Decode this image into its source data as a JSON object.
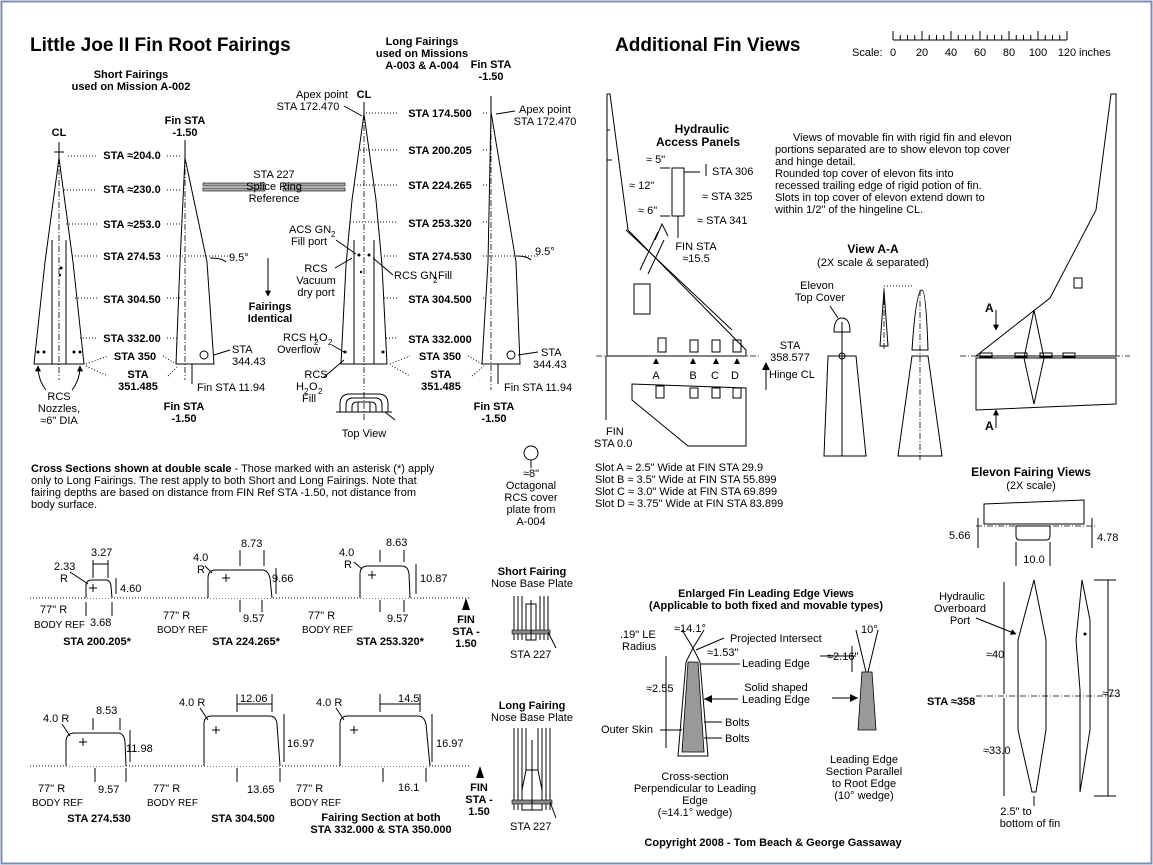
{
  "left": {
    "title": "Little Joe II Fin Root Fairings",
    "short_head": [
      "Short Fairings",
      "used on Mission A-002"
    ],
    "long_head": [
      "Long Fairings",
      "used on Missions",
      "A-003 & A-004"
    ],
    "cl": "CL",
    "fin_sta_top_l": [
      "Fin STA",
      "-1.50"
    ],
    "fin_sta_top_r": [
      "Fin STA",
      "-1.50"
    ],
    "apex_l": [
      "Apex point",
      "STA 172.470"
    ],
    "apex_r": [
      "Apex point",
      "STA 172.470"
    ],
    "short_stations": [
      "STA ≈204.0",
      "STA ≈230.0",
      "STA ≈253.0",
      "STA 274.53",
      "STA 304.50",
      "STA 332.00",
      "STA 350"
    ],
    "long_stations": [
      "STA 174.500",
      "STA 200.205",
      "STA 224.265",
      "STA 253.320",
      "STA 274.530",
      "STA 304.500",
      "STA 332.000",
      "STA 350"
    ],
    "sta_351_l": [
      "STA",
      "351.485"
    ],
    "sta_351_r": [
      "STA",
      "351.485"
    ],
    "splice": [
      "STA 227",
      "Splice Ring",
      "Reference"
    ],
    "angle_l": "9.5°",
    "angle_r": "9.5°",
    "fairings_identical": [
      "Fairings",
      "Identical"
    ],
    "acs": [
      "ACS GN",
      "2",
      "Fill port"
    ],
    "rcs_vac": [
      "RCS",
      "Vacuum",
      "dry port"
    ],
    "rcs_gn2": [
      "RCS GN",
      "2",
      " Fill"
    ],
    "rcs_h2o2_over": [
      "RCS H",
      "2",
      "O",
      "2",
      "Overflow"
    ],
    "rcs_h2o2_fill": [
      "RCS",
      "H",
      "2",
      "O",
      "2",
      "Fill"
    ],
    "sta_34443_l": [
      "STA",
      "344.43"
    ],
    "sta_34443_r": [
      "STA",
      "344.43"
    ],
    "fin_sta_1194_l": "Fin STA 11.94",
    "fin_sta_1194_r": "Fin STA 11.94",
    "fin_sta_bot_l": [
      "Fin STA",
      "-1.50"
    ],
    "fin_sta_bot_r": [
      "Fin STA",
      "-1.50"
    ],
    "rcs_nozzles": [
      "RCS",
      "Nozzles,",
      "≈6\" DIA"
    ],
    "top_view": "Top View",
    "octagonal": [
      "≈8\"",
      "Octagonal",
      "RCS cover",
      "plate from",
      "A-004"
    ],
    "cross_bold": "Cross Sections shown at double scale",
    "cross_lines": [
      " - Those marked with an asterisk (*) apply",
      "only to Long Fairings. The rest apply to both Short and Long Fairings. Note that",
      "fairing depths are based on distance from FIN Ref STA -1.50, not distance from",
      "body surface."
    ]
  },
  "sections": {
    "s1": {
      "r": "2.33",
      "r_label": "R",
      "w": "3.27",
      "h": "4.60",
      "d": "3.68",
      "body": "77\" R",
      "ref": "BODY REF",
      "label": "STA 200.205*"
    },
    "s2": {
      "r": "4.0",
      "r_label": "R",
      "w": "8.73",
      "h": "9.66",
      "d": "9.57",
      "body": "77\" R",
      "ref": "BODY REF",
      "label": "STA 224.265*"
    },
    "s3": {
      "r": "4.0",
      "r_label": "R",
      "w": "8.63",
      "h": "10.87",
      "d": "9.57",
      "body": "77\" R",
      "ref": "BODY REF",
      "label": "STA 253.320*"
    },
    "s4": {
      "r": "4.0  R",
      "w": "8.53",
      "h": "11.98",
      "d": "9.57",
      "body": "77\" R",
      "ref": "BODY REF",
      "label": "STA  274.530"
    },
    "s5": {
      "r": "4.0  R",
      "w": "12.06",
      "h": "16.97",
      "d": "13.65",
      "body": "77\" R",
      "ref": "BODY REF",
      "label": "STA 304.500"
    },
    "s6": {
      "r": "4.0  R",
      "w": "14.5",
      "h": "16.97",
      "d": "16.1",
      "body": "77\" R",
      "ref": "BODY REF",
      "label": [
        "Fairing Section at both",
        "STA 332.000 & STA 350.000"
      ]
    },
    "fin_ref_a": [
      "FIN",
      "STA -",
      "1.50"
    ],
    "fin_ref_b": [
      "FIN",
      "STA -",
      "1.50"
    ],
    "short_plate": [
      "Short Fairing",
      "Nose Base Plate"
    ],
    "long_plate": [
      "Long Fairing",
      "Nose Base Plate"
    ],
    "sta227_a": "STA 227",
    "sta227_b": "STA 227"
  },
  "right": {
    "title": "Additional Fin Views",
    "scale_label": "Scale:",
    "scale_ticks": [
      "0",
      "20",
      "40",
      "60",
      "80",
      "100",
      "120"
    ],
    "scale_unit": "inches",
    "hyd_title": [
      "Hydraulic",
      "Access Panels"
    ],
    "hyd_dims": [
      "≈ 5\"",
      "≈ 12\"",
      "≈ 6\""
    ],
    "hyd_sta": [
      "STA 306",
      "≈ STA 325",
      "≈ STA 341"
    ],
    "hyd_fin": [
      "FIN STA",
      "≈15.5"
    ],
    "notes": [
      "Views of movable fin with rigid fin and elevon",
      "portions separated are to show elevon top cover",
      "and hinge detail.",
      "    Rounded top cover of elevon fits into",
      "recessed  trailing edge of rigid potion of fin.",
      "    Slots in top cover of elevon extend down to",
      "within 1/2\" of the hingeline CL."
    ],
    "view_aa": "View A-A",
    "view_aa_sub": "(2X scale & separated)",
    "elevon_cover": [
      "Elevon",
      "Top Cover"
    ],
    "sta_358": [
      "STA",
      "358.577"
    ],
    "hinge_cl": "Hinge CL",
    "slot_letters": [
      "A",
      "B",
      "C",
      "D"
    ],
    "fin_sta0": [
      "FIN",
      "STA 0.0"
    ],
    "slots": [
      "Slot A ≈ 2.5\" Wide at FIN STA 29.9",
      "Slot B ≈ 3.5\" Wide at FIN STA 55.899",
      "Slot C ≈ 3.0\" Wide at FIN STA 69.899",
      "Slot D ≈ 3.75\" Wide at FIN STA 83.899"
    ],
    "aa_marks": [
      "A",
      "A"
    ],
    "elevon_title": "Elevon Fairing Views",
    "elevon_sub": "(2X  scale)",
    "elevon_dims": [
      "5.66",
      "4.78",
      "10.0"
    ],
    "hyd_port": [
      "Hydraulic",
      "Overboard",
      "Port"
    ],
    "dims_40": "≈40",
    "dims_33": "≈33.0",
    "dims_73": "≈73",
    "sta_358b": "STA ≈358",
    "bottom_note": [
      "2.5\" to",
      "bottom of fin"
    ],
    "le_title": [
      "Enlarged Fin Leading Edge Views",
      "(Applicable to both fixed and movable types)"
    ],
    "le_radius": [
      ".19\" LE",
      "Radius"
    ],
    "le_angle": "≈14.1°",
    "le_ten": "10°",
    "le_proj": "Projected Intersect",
    "le_153": "≈1.53\"",
    "le_edge": "Leading Edge",
    "le_216": "≈2.16\"",
    "le_255": "≈2.55",
    "le_solid": [
      "Solid shaped",
      "Leading Edge"
    ],
    "le_skin": "Outer Skin",
    "le_bolts": [
      "Bolts",
      "Bolts"
    ],
    "le_cap1": [
      "Cross-section",
      "Perpendicular to Leading",
      "Edge",
      "(≈14.1° wedge)"
    ],
    "le_cap2": [
      "Leading Edge",
      "Section Parallel",
      "to Root Edge",
      "(10°  wedge)"
    ]
  },
  "copyright": "Copyright 2008  -  Tom Beach & George Gassaway"
}
